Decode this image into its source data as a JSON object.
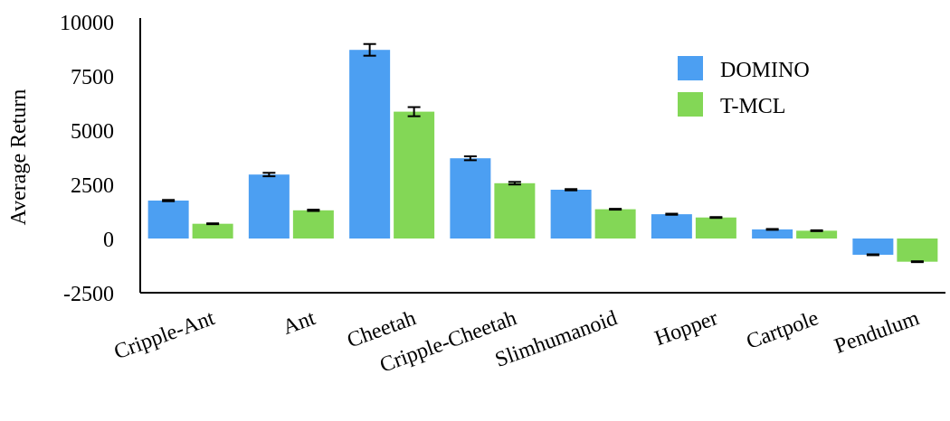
{
  "chart_data": {
    "type": "bar",
    "ylabel": "Average Return",
    "ylim": [
      -2500,
      10000
    ],
    "yticks": [
      10000,
      7500,
      5000,
      2500,
      0,
      -2500
    ],
    "ytick_labels": [
      "10000",
      "7500",
      "5000",
      "2500",
      "0",
      "-2500"
    ],
    "grid": false,
    "legend_position": "top-right",
    "categories": [
      "Cripple-Ant",
      "Ant",
      "Cheetah",
      "Cripple-Cheetah",
      "Slimhumanoid",
      "Hopper",
      "Cartpole",
      "Pendulum"
    ],
    "series": [
      {
        "name": "DOMINO",
        "color": "#4c9ff2",
        "values": [
          1750,
          2950,
          8700,
          3700,
          2250,
          1120,
          420,
          -750
        ],
        "errors": [
          30,
          80,
          270,
          90,
          30,
          25,
          20,
          20
        ]
      },
      {
        "name": "T-MCL",
        "color": "#83d756",
        "values": [
          680,
          1300,
          5850,
          2550,
          1350,
          970,
          360,
          -1070
        ],
        "errors": [
          20,
          30,
          210,
          60,
          20,
          20,
          20,
          20
        ]
      }
    ]
  }
}
